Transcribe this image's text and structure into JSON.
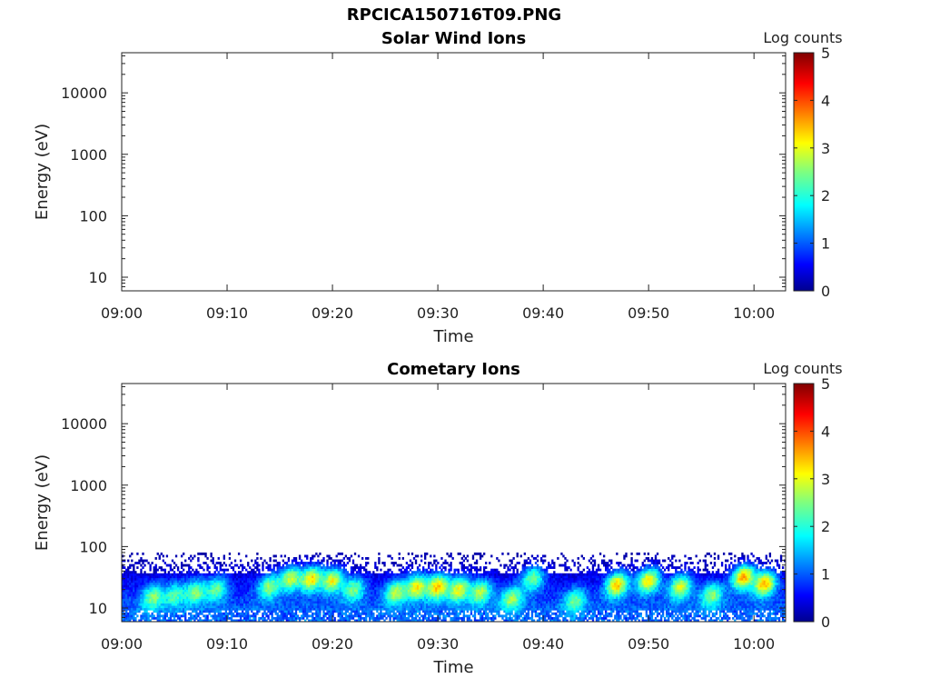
{
  "figure": {
    "title": "RPCICA150716T09.PNG"
  },
  "chart_data": [
    {
      "type": "heatmap",
      "title": "Solar Wind Ions",
      "xlabel": "Time",
      "ylabel": "Energy (eV)",
      "x_ticks": [
        "09:00",
        "09:10",
        "09:20",
        "09:30",
        "09:40",
        "09:50",
        "10:00"
      ],
      "x_range": [
        "09:00",
        "10:03"
      ],
      "y_scale": "log",
      "y_ticks": [
        "10",
        "100",
        "1000",
        "10000"
      ],
      "y_range": [
        6,
        45000
      ],
      "colorbar": {
        "label": "Log counts",
        "ticks": [
          "0",
          "1",
          "2",
          "3",
          "4",
          "5"
        ],
        "range": [
          0,
          5
        ],
        "colormap": "jet"
      },
      "data": "empty"
    },
    {
      "type": "heatmap",
      "title": "Cometary Ions",
      "xlabel": "Time",
      "ylabel": "Energy (eV)",
      "x_ticks": [
        "09:00",
        "09:10",
        "09:20",
        "09:30",
        "09:40",
        "09:50",
        "10:00"
      ],
      "x_range": [
        "09:00",
        "10:03"
      ],
      "y_scale": "log",
      "y_ticks": [
        "10",
        "100",
        "1000",
        "10000"
      ],
      "y_range": [
        6,
        45000
      ],
      "colorbar": {
        "label": "Log counts",
        "ticks": [
          "0",
          "1",
          "2",
          "3",
          "4",
          "5"
        ],
        "range": [
          0,
          5
        ],
        "colormap": "jet"
      },
      "data_energy_range_eV": [
        6,
        80
      ],
      "events": [
        {
          "time": "09:03",
          "energy_eV": 15,
          "log_counts": 2.6
        },
        {
          "time": "09:05",
          "energy_eV": 16,
          "log_counts": 2.3
        },
        {
          "time": "09:07",
          "energy_eV": 18,
          "log_counts": 2.6
        },
        {
          "time": "09:09",
          "energy_eV": 20,
          "log_counts": 2.4
        },
        {
          "time": "09:14",
          "energy_eV": 22,
          "log_counts": 2.6
        },
        {
          "time": "09:16",
          "energy_eV": 30,
          "log_counts": 2.9
        },
        {
          "time": "09:18",
          "energy_eV": 30,
          "log_counts": 3.3
        },
        {
          "time": "09:20",
          "energy_eV": 28,
          "log_counts": 3.1
        },
        {
          "time": "09:22",
          "energy_eV": 20,
          "log_counts": 2.5
        },
        {
          "time": "09:26",
          "energy_eV": 18,
          "log_counts": 2.8
        },
        {
          "time": "09:28",
          "energy_eV": 22,
          "log_counts": 3.2
        },
        {
          "time": "09:30",
          "energy_eV": 22,
          "log_counts": 3.5
        },
        {
          "time": "09:32",
          "energy_eV": 20,
          "log_counts": 3.1
        },
        {
          "time": "09:34",
          "energy_eV": 18,
          "log_counts": 2.8
        },
        {
          "time": "09:37",
          "energy_eV": 14,
          "log_counts": 2.7
        },
        {
          "time": "09:39",
          "energy_eV": 30,
          "log_counts": 2.5
        },
        {
          "time": "09:43",
          "energy_eV": 13,
          "log_counts": 2.4
        },
        {
          "time": "09:47",
          "energy_eV": 24,
          "log_counts": 3.4
        },
        {
          "time": "09:50",
          "energy_eV": 28,
          "log_counts": 3.3
        },
        {
          "time": "09:53",
          "energy_eV": 22,
          "log_counts": 3.0
        },
        {
          "time": "09:56",
          "energy_eV": 16,
          "log_counts": 2.6
        },
        {
          "time": "09:59",
          "energy_eV": 32,
          "log_counts": 3.6
        },
        {
          "time": "10:01",
          "energy_eV": 25,
          "log_counts": 3.5
        }
      ]
    }
  ]
}
